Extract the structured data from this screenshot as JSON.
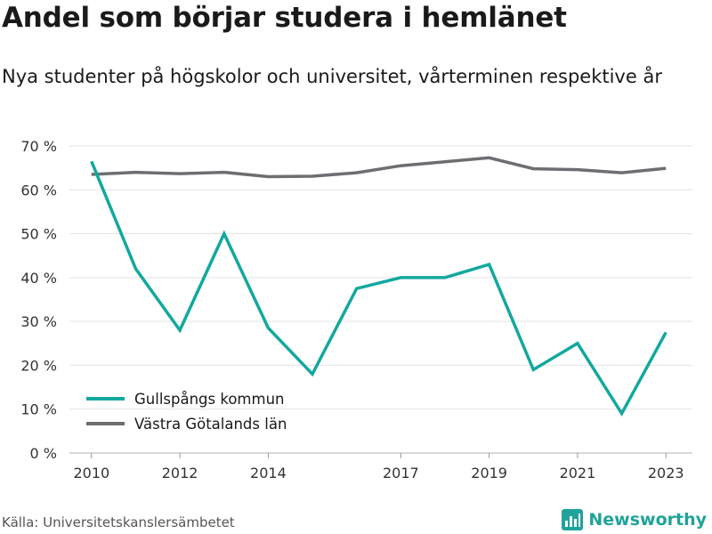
{
  "title": "Andel som börjar studera i hemlänet",
  "subtitle": "Nya studenter på högskolor och universitet, vårterminen respektive år",
  "source": "Källa: Universitetskanslersämbetet",
  "brand": {
    "name": "Newsworthy",
    "icon": "bar-chart-logo-icon",
    "color": "#1fa39a"
  },
  "chart_data": {
    "type": "line",
    "xlim": [
      2009.5,
      2023.6
    ],
    "ylim": [
      0,
      70
    ],
    "x_ticks": [
      2010,
      2012,
      2014,
      2017,
      2019,
      2021,
      2023
    ],
    "y_ticks": [
      0,
      10,
      20,
      30,
      40,
      50,
      60,
      70
    ],
    "y_tick_suffix": " %",
    "grid": true,
    "legend_position": "bottom-left",
    "series": [
      {
        "name": "Gullspångs kommun",
        "color": "#13a89e",
        "x": [
          2010,
          2011,
          2012,
          2013,
          2014,
          2015,
          2016,
          2017,
          2018,
          2019,
          2020,
          2021,
          2022,
          2023
        ],
        "y": [
          66.5,
          42,
          28,
          50,
          28.5,
          18,
          37.5,
          40,
          40,
          43,
          19,
          25,
          9,
          27.5
        ]
      },
      {
        "name": "Västra Götalands län",
        "color": "#6d6e72",
        "x": [
          2010,
          2011,
          2012,
          2013,
          2014,
          2015,
          2016,
          2017,
          2018,
          2019,
          2020,
          2021,
          2022,
          2023
        ],
        "y": [
          63.5,
          64,
          63.7,
          64,
          63,
          63.1,
          63.9,
          65.5,
          66.4,
          67.3,
          64.8,
          64.6,
          63.9,
          64.9
        ]
      }
    ]
  }
}
